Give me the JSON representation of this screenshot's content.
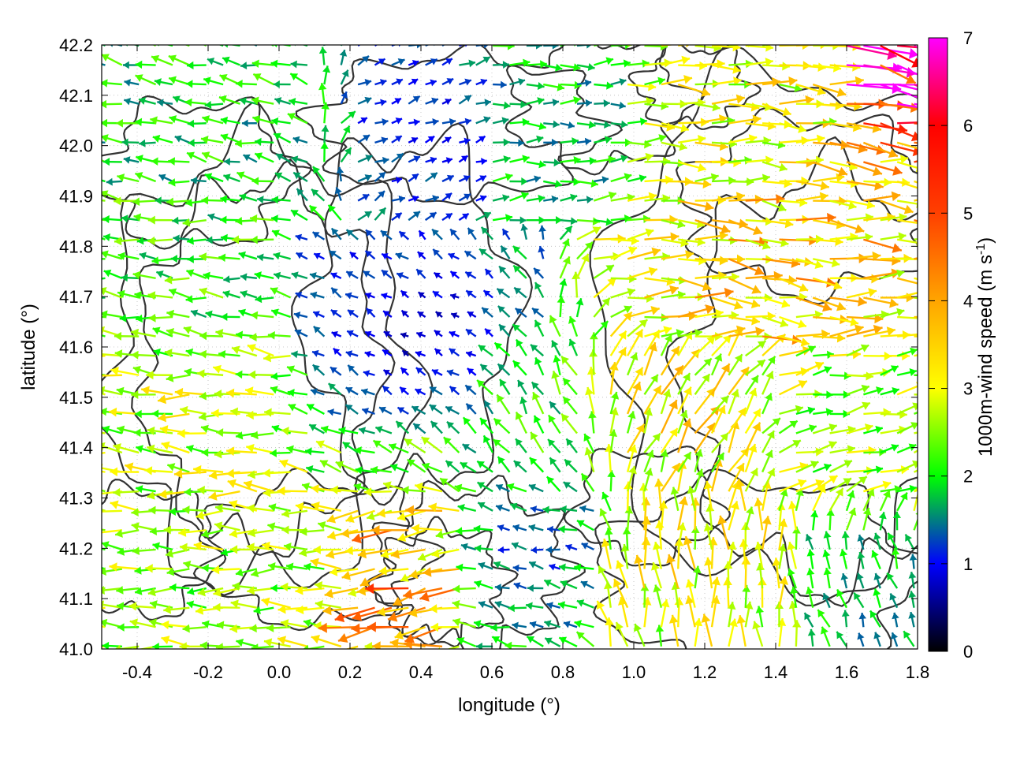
{
  "chart_data": {
    "type": "vector-field",
    "xlabel": "longitude (°)",
    "ylabel": "latitude (°)",
    "xlim": [
      -0.5,
      1.8
    ],
    "ylim": [
      41.0,
      42.2
    ],
    "xticks": [
      "-0.4",
      "-0.2",
      "0.0",
      "0.2",
      "0.4",
      "0.6",
      "0.8",
      "1.0",
      "1.2",
      "1.4",
      "1.6",
      "1.8"
    ],
    "yticks": [
      "41.0",
      "41.1",
      "41.2",
      "41.3",
      "41.4",
      "41.5",
      "41.6",
      "41.7",
      "41.8",
      "41.9",
      "42.0",
      "42.1",
      "42.2"
    ],
    "grid": "dotted",
    "colorbar": {
      "label_main": "1000m-wind speed (m s",
      "label_sup": "-1",
      "label_end": ")",
      "range": [
        0,
        7
      ],
      "ticks": [
        "0",
        "1",
        "2",
        "3",
        "4",
        "5",
        "6",
        "7"
      ],
      "colors": [
        "#000000",
        "#0000ff",
        "#00ff00",
        "#ffff00",
        "#ffa500",
        "#ff0000",
        "#ff00ff"
      ]
    },
    "wind_regions": [
      {
        "lon": [
          -0.5,
          0.1
        ],
        "lat": [
          41.9,
          42.2
        ],
        "speed": 2.2,
        "dir": 170
      },
      {
        "lon": [
          -0.5,
          0.05
        ],
        "lat": [
          41.6,
          41.9
        ],
        "speed": 2.5,
        "dir": 175
      },
      {
        "lon": [
          -0.5,
          0.1
        ],
        "lat": [
          41.3,
          41.6
        ],
        "speed": 3.3,
        "dir": 178
      },
      {
        "lon": [
          -0.5,
          0.2
        ],
        "lat": [
          41.0,
          41.3
        ],
        "speed": 3.0,
        "dir": 180
      },
      {
        "lon": [
          0.05,
          0.75
        ],
        "lat": [
          41.4,
          41.85
        ],
        "speed": 0.8,
        "dir": 150
      },
      {
        "lon": [
          0.2,
          0.6
        ],
        "lat": [
          41.85,
          42.2
        ],
        "speed": 1.2,
        "dir": 20
      },
      {
        "lon": [
          0.6,
          0.95
        ],
        "lat": [
          41.85,
          42.2
        ],
        "speed": 2.0,
        "dir": 0
      },
      {
        "lon": [
          0.85,
          1.8
        ],
        "lat": [
          41.6,
          41.9
        ],
        "speed": 4.2,
        "dir": 350
      },
      {
        "lon": [
          0.95,
          1.8
        ],
        "lat": [
          41.9,
          42.2
        ],
        "speed": 3.5,
        "dir": 355
      },
      {
        "lon": [
          1.6,
          1.8
        ],
        "lat": [
          42.05,
          42.2
        ],
        "speed": 6.8,
        "dir": 345
      },
      {
        "lon": [
          0.85,
          1.4
        ],
        "lat": [
          41.3,
          41.6
        ],
        "speed": 3.8,
        "dir": 60
      },
      {
        "lon": [
          1.4,
          1.8
        ],
        "lat": [
          41.3,
          41.6
        ],
        "speed": 3.0,
        "dir": 10
      },
      {
        "lon": [
          0.9,
          1.5
        ],
        "lat": [
          41.0,
          41.3
        ],
        "speed": 3.6,
        "dir": 90
      },
      {
        "lon": [
          1.5,
          1.8
        ],
        "lat": [
          41.0,
          41.2
        ],
        "speed": 2.0,
        "dir": 110
      },
      {
        "lon": [
          0.2,
          0.55
        ],
        "lat": [
          41.0,
          41.3
        ],
        "speed": 4.5,
        "dir": 195
      },
      {
        "lon": [
          0.55,
          0.9
        ],
        "lat": [
          41.0,
          41.4
        ],
        "speed": 1.5,
        "dir": 170
      },
      {
        "lon": [
          0.6,
          0.9
        ],
        "lat": [
          41.3,
          41.6
        ],
        "speed": 2.4,
        "dir": 120
      }
    ]
  }
}
